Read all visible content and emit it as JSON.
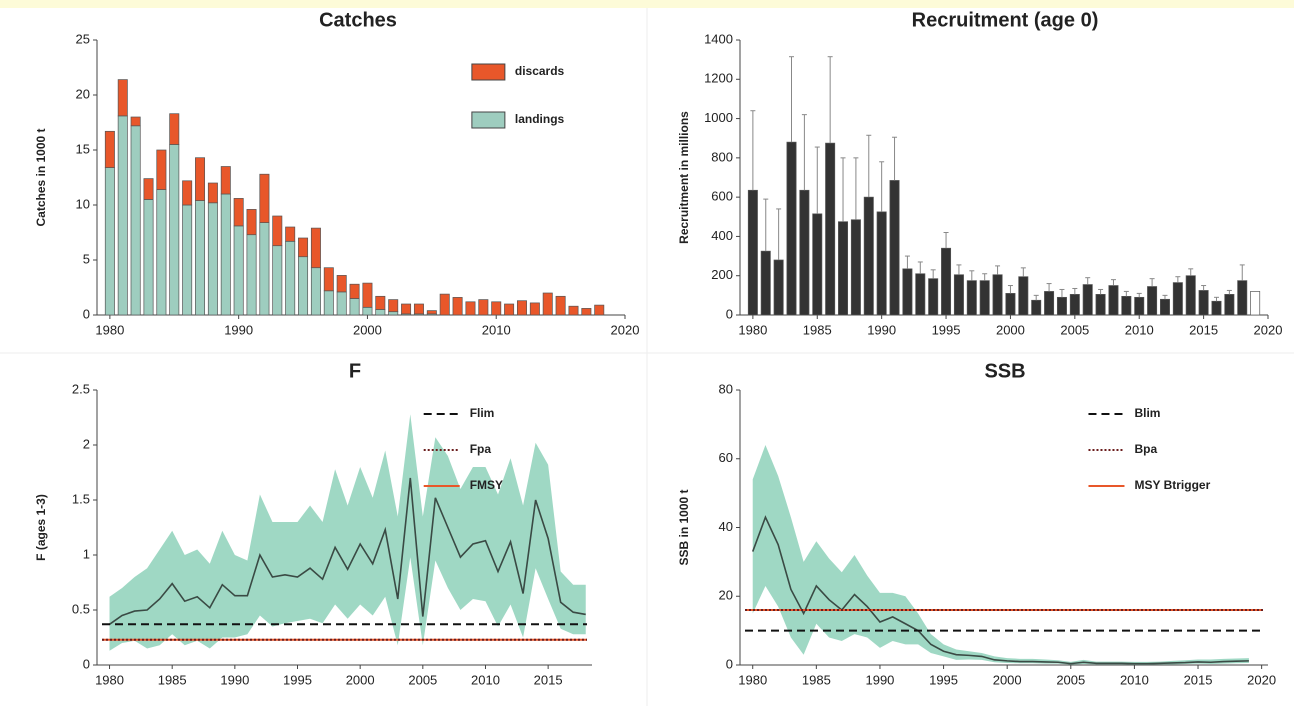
{
  "chart_data": [
    {
      "type": "bar",
      "stacked": true,
      "title": "Catches",
      "ylabel": "Catches in 1000 t",
      "x": [
        1980,
        1981,
        1982,
        1983,
        1984,
        1985,
        1986,
        1987,
        1988,
        1989,
        1990,
        1991,
        1992,
        1993,
        1994,
        1995,
        1996,
        1997,
        1998,
        1999,
        2000,
        2001,
        2002,
        2003,
        2004,
        2005,
        2006,
        2007,
        2008,
        2009,
        2010,
        2011,
        2012,
        2013,
        2014,
        2015,
        2016,
        2017,
        2018
      ],
      "series": [
        {
          "name": "landings",
          "color": "#9ecdbf",
          "values": [
            13.4,
            18.1,
            17.2,
            10.5,
            11.4,
            15.5,
            10.0,
            10.4,
            10.2,
            11.0,
            8.1,
            7.3,
            8.4,
            6.3,
            6.7,
            5.3,
            4.3,
            2.2,
            2.1,
            1.5,
            0.7,
            0.5,
            0.3,
            0.1,
            0.1,
            0.1,
            0,
            0,
            0,
            0,
            0,
            0,
            0,
            0,
            0,
            0,
            0,
            0,
            0
          ]
        },
        {
          "name": "discards",
          "color": "#e8572a",
          "values": [
            3.3,
            3.3,
            0.8,
            1.9,
            3.6,
            2.8,
            2.2,
            3.9,
            1.8,
            2.5,
            2.5,
            2.3,
            4.4,
            2.7,
            1.3,
            1.7,
            3.6,
            2.1,
            1.5,
            1.3,
            2.2,
            1.2,
            1.1,
            0.9,
            0.9,
            0.3,
            1.9,
            1.6,
            1.2,
            1.4,
            1.2,
            1.0,
            1.3,
            1.1,
            2.0,
            1.7,
            0.8,
            0.6,
            0.9
          ]
        }
      ],
      "xlim": [
        1979,
        2020
      ],
      "xticks": [
        1980,
        1990,
        2000,
        2010,
        2020
      ],
      "ylim": [
        0,
        25
      ],
      "yticks": [
        0,
        5,
        10,
        15,
        20,
        25
      ],
      "legend": "upper right"
    },
    {
      "type": "bar",
      "title": "Recruitment (age 0)",
      "ylabel": "Recruitment in millions",
      "x": [
        1980,
        1981,
        1982,
        1983,
        1984,
        1985,
        1986,
        1987,
        1988,
        1989,
        1990,
        1991,
        1992,
        1993,
        1994,
        1995,
        1996,
        1997,
        1998,
        1999,
        2000,
        2001,
        2002,
        2003,
        2004,
        2005,
        2006,
        2007,
        2008,
        2009,
        2010,
        2011,
        2012,
        2013,
        2014,
        2015,
        2016,
        2017,
        2018,
        2019
      ],
      "series": [
        {
          "color": "#333333",
          "colors": [
            "#333333",
            "#333333",
            "#333333",
            "#333333",
            "#333333",
            "#333333",
            "#333333",
            "#333333",
            "#333333",
            "#333333",
            "#333333",
            "#333333",
            "#333333",
            "#333333",
            "#333333",
            "#333333",
            "#333333",
            "#333333",
            "#333333",
            "#333333",
            "#333333",
            "#333333",
            "#333333",
            "#333333",
            "#333333",
            "#333333",
            "#333333",
            "#333333",
            "#333333",
            "#333333",
            "#333333",
            "#333333",
            "#333333",
            "#333333",
            "#333333",
            "#333333",
            "#333333",
            "#333333",
            "#333333",
            "#ffffff"
          ],
          "values": [
            635,
            325,
            280,
            880,
            635,
            515,
            875,
            475,
            485,
            600,
            525,
            685,
            235,
            210,
            185,
            340,
            205,
            175,
            175,
            205,
            110,
            195,
            75,
            120,
            90,
            105,
            155,
            105,
            150,
            95,
            90,
            145,
            80,
            165,
            200,
            125,
            70,
            105,
            175,
            120
          ],
          "errors": [
            405,
            265,
            260,
            435,
            385,
            340,
            440,
            325,
            315,
            315,
            255,
            220,
            65,
            60,
            45,
            80,
            50,
            50,
            35,
            45,
            40,
            45,
            25,
            40,
            40,
            30,
            35,
            25,
            30,
            25,
            20,
            40,
            20,
            30,
            35,
            25,
            20,
            20,
            80,
            null
          ]
        }
      ],
      "xlim": [
        1979,
        2020
      ],
      "xticks": [
        1980,
        1985,
        1990,
        1995,
        2000,
        2005,
        2010,
        2015,
        2020
      ],
      "ylim": [
        0,
        1400
      ],
      "yticks": [
        0,
        200,
        400,
        600,
        800,
        1000,
        1200,
        1400
      ]
    },
    {
      "type": "line",
      "title": "F",
      "ylabel": "F (ages 1-3)",
      "x": [
        1980,
        1981,
        1982,
        1983,
        1984,
        1985,
        1986,
        1987,
        1988,
        1989,
        1990,
        1991,
        1992,
        1993,
        1994,
        1995,
        1996,
        1997,
        1998,
        1999,
        2000,
        2001,
        2002,
        2003,
        2004,
        2005,
        2006,
        2007,
        2008,
        2009,
        2010,
        2011,
        2012,
        2013,
        2014,
        2015,
        2016,
        2017,
        2018
      ],
      "series": [
        {
          "color": "#3a4a44",
          "band_color": "#9fd8c4",
          "values": [
            0.37,
            0.45,
            0.49,
            0.5,
            0.6,
            0.74,
            0.58,
            0.62,
            0.52,
            0.73,
            0.63,
            0.63,
            1.0,
            0.8,
            0.82,
            0.8,
            0.88,
            0.78,
            1.07,
            0.87,
            1.1,
            0.92,
            1.23,
            0.6,
            1.7,
            0.44,
            1.52,
            1.25,
            0.98,
            1.1,
            1.13,
            0.85,
            1.12,
            0.65,
            1.5,
            1.15,
            0.57,
            0.48,
            0.46
          ],
          "upper": [
            0.62,
            0.7,
            0.8,
            0.88,
            1.05,
            1.22,
            1.0,
            1.05,
            0.92,
            1.22,
            1.0,
            0.95,
            1.55,
            1.3,
            1.3,
            1.3,
            1.45,
            1.3,
            1.78,
            1.45,
            1.8,
            1.52,
            1.95,
            1.35,
            2.28,
            1.35,
            2.07,
            1.9,
            1.6,
            1.8,
            1.8,
            1.55,
            1.88,
            1.45,
            2.02,
            1.82,
            0.85,
            0.73,
            0.73
          ],
          "lower": [
            0.13,
            0.2,
            0.22,
            0.15,
            0.18,
            0.28,
            0.18,
            0.22,
            0.15,
            0.25,
            0.25,
            0.28,
            0.45,
            0.35,
            0.38,
            0.4,
            0.42,
            0.38,
            0.55,
            0.42,
            0.55,
            0.45,
            0.62,
            0.18,
            0.98,
            0.18,
            0.95,
            0.7,
            0.5,
            0.6,
            0.58,
            0.35,
            0.55,
            0.25,
            0.88,
            0.6,
            0.33,
            0.28,
            0.28
          ]
        }
      ],
      "reference_lines": [
        {
          "name": "Flim",
          "value": 0.37,
          "style": "dashed",
          "color": "#111111"
        },
        {
          "name": "Fpa",
          "value": 0.23,
          "style": "dotted",
          "color": "#6b1e1e"
        },
        {
          "name": "FMSY",
          "value": 0.23,
          "style": "solid",
          "color": "#e8572a"
        }
      ],
      "xlim": [
        1979,
        2018.5
      ],
      "xticks": [
        1980,
        1985,
        1990,
        1995,
        2000,
        2005,
        2010,
        2015
      ],
      "ylim": [
        0,
        2.5
      ],
      "yticks": [
        0,
        0.5,
        1,
        1.5,
        2,
        2.5
      ],
      "legend": "upper right"
    },
    {
      "type": "line",
      "title": "SSB",
      "ylabel": "SSB in 1000 t",
      "x": [
        1980,
        1981,
        1982,
        1983,
        1984,
        1985,
        1986,
        1987,
        1988,
        1989,
        1990,
        1991,
        1992,
        1993,
        1994,
        1995,
        1996,
        1997,
        1998,
        1999,
        2000,
        2001,
        2002,
        2003,
        2004,
        2005,
        2006,
        2007,
        2008,
        2009,
        2010,
        2011,
        2012,
        2013,
        2014,
        2015,
        2016,
        2017,
        2018,
        2019
      ],
      "series": [
        {
          "color": "#3a4a44",
          "band_color": "#9fd8c4",
          "values": [
            33,
            43,
            35,
            22,
            15,
            23,
            19,
            16,
            20.5,
            17,
            12.5,
            14,
            12,
            10,
            6,
            4,
            3,
            2.8,
            2.5,
            1.5,
            1.2,
            1.0,
            1.0,
            0.9,
            0.8,
            0.4,
            0.8,
            0.5,
            0.5,
            0.5,
            0.4,
            0.4,
            0.5,
            0.6,
            0.7,
            0.9,
            0.8,
            1.0,
            1.1,
            1.2
          ],
          "upper": [
            54,
            64,
            55,
            43,
            30,
            36,
            31,
            27,
            32,
            26,
            21,
            21,
            20,
            15,
            9,
            6,
            4.5,
            4,
            3.5,
            2.5,
            2,
            1.8,
            1.8,
            1.6,
            1.4,
            0.9,
            1.5,
            1,
            1,
            1,
            0.9,
            0.9,
            1,
            1.2,
            1.4,
            1.6,
            1.6,
            1.8,
            1.9,
            2
          ],
          "lower": [
            15,
            23,
            17,
            8,
            3,
            12,
            8,
            7,
            9,
            8,
            5,
            7,
            6,
            6,
            3.5,
            2.5,
            1.5,
            1.6,
            1.5,
            0.8,
            0.6,
            0.5,
            0.5,
            0.4,
            0.4,
            0.1,
            0.3,
            0.2,
            0.2,
            0.2,
            0.1,
            0.1,
            0.2,
            0.2,
            0.3,
            0.4,
            0.3,
            0.4,
            0.5,
            0.6
          ]
        }
      ],
      "reference_lines": [
        {
          "name": "Blim",
          "value": 10,
          "style": "dashed",
          "color": "#111111"
        },
        {
          "name": "Bpa",
          "value": 16,
          "style": "dotted",
          "color": "#6b1e1e"
        },
        {
          "name": "MSY Btrigger",
          "value": 16,
          "style": "solid",
          "color": "#e8572a"
        }
      ],
      "xlim": [
        1979,
        2020.5
      ],
      "xticks": [
        1980,
        1985,
        1990,
        1995,
        2000,
        2005,
        2010,
        2015,
        2020
      ],
      "ylim": [
        0,
        80
      ],
      "yticks": [
        0,
        20,
        40,
        60,
        80
      ],
      "legend": "upper right"
    }
  ]
}
